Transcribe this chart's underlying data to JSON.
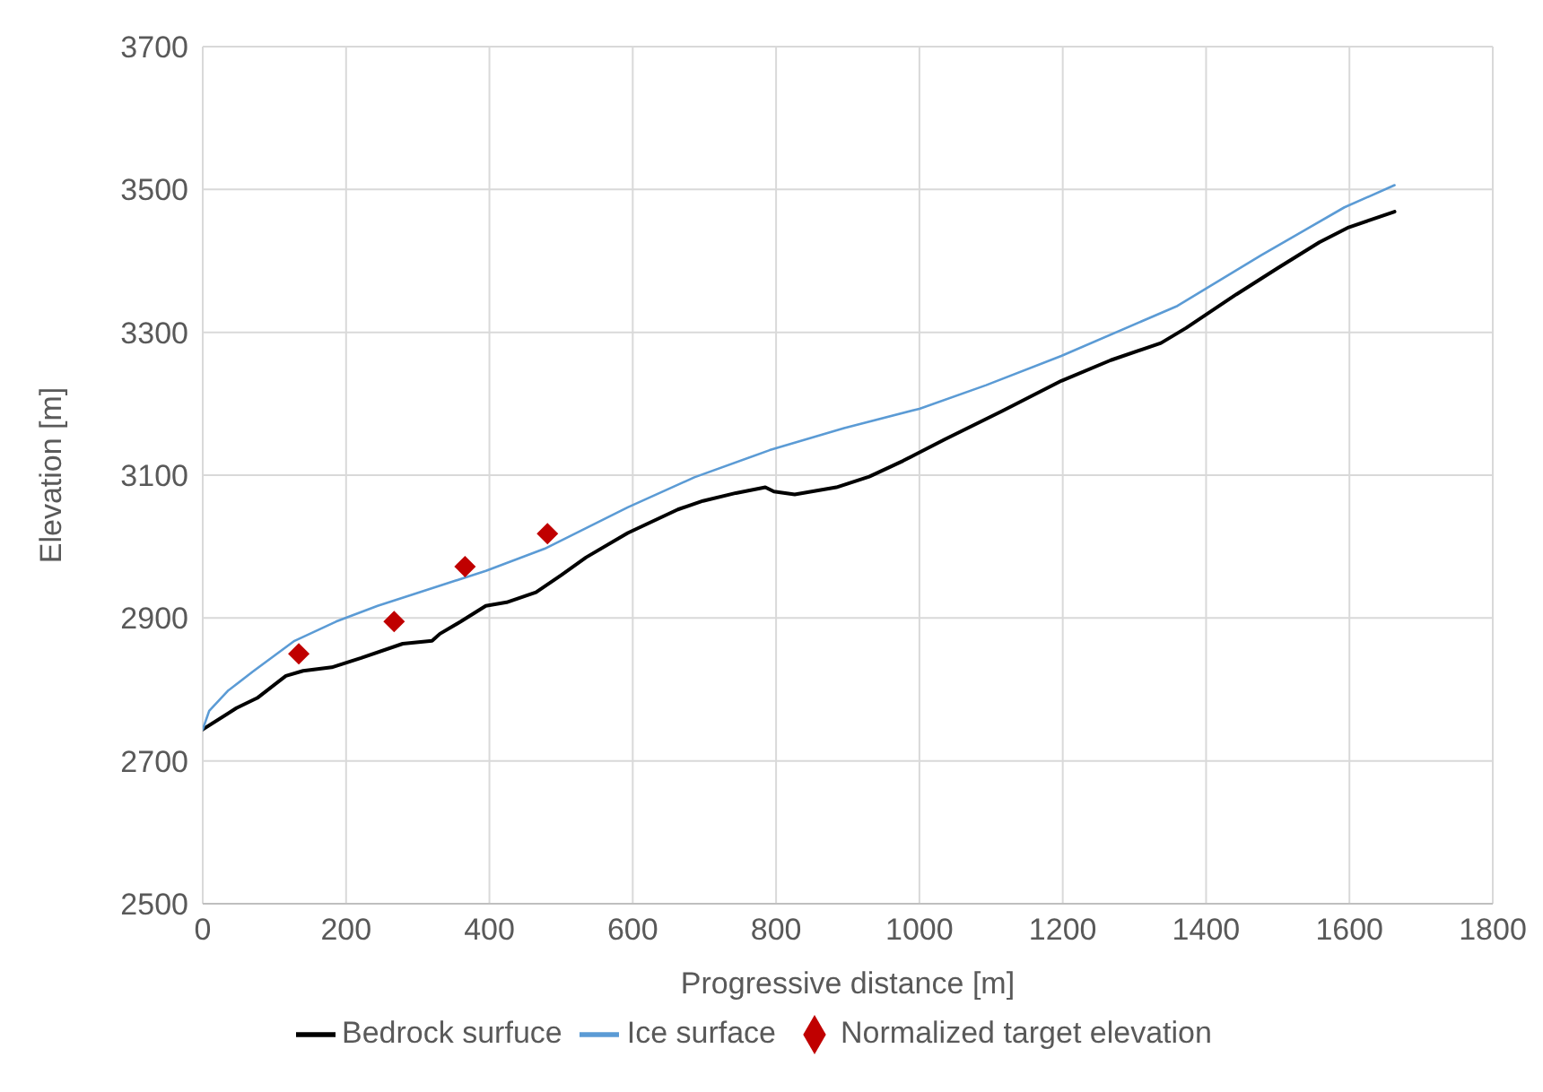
{
  "chart_data": {
    "type": "line",
    "xlabel": "Progressive distance [m]",
    "ylabel": "Elevation [m]",
    "xlim": [
      0,
      1800
    ],
    "xticks": [
      0,
      200,
      400,
      600,
      800,
      1000,
      1200,
      1400,
      1600,
      1800
    ],
    "ylim": [
      2500,
      3700
    ],
    "yticks": [
      2500,
      2700,
      2900,
      3100,
      3300,
      3500,
      3700
    ],
    "grid": true,
    "legend": "bottom",
    "series": [
      {
        "name": "Bedrock surfuce",
        "color": "#000000",
        "marker": "none",
        "x": [
          0,
          47,
          76,
          116,
          140,
          180,
          221,
          279,
          320,
          331,
          360,
          395,
          424,
          465,
          500,
          535,
          593,
          663,
          698,
          744,
          785,
          797,
          826,
          884,
          930,
          977,
          1035,
          1116,
          1198,
          1267,
          1337,
          1372,
          1442,
          1500,
          1558,
          1599,
          1628,
          1663
        ],
        "values": [
          2744,
          2774,
          2788,
          2819,
          2826,
          2831,
          2844,
          2864,
          2868,
          2878,
          2895,
          2917,
          2922,
          2936,
          2960,
          2985,
          3019,
          3052,
          3064,
          3075,
          3083,
          3077,
          3073,
          3083,
          3098,
          3120,
          3150,
          3190,
          3232,
          3261,
          3285,
          3306,
          3353,
          3390,
          3426,
          3447,
          3457,
          3469
        ]
      },
      {
        "name": "Ice surface",
        "color": "#5b9bd5",
        "marker": "none",
        "x": [
          0,
          9,
          35,
          70,
          128,
          186,
          244,
          302,
          395,
          477,
          593,
          686,
          791,
          895,
          1000,
          1093,
          1198,
          1360,
          1477,
          1593,
          1663
        ],
        "values": [
          2744,
          2770,
          2798,
          2825,
          2868,
          2895,
          2917,
          2936,
          2966,
          2997,
          3055,
          3097,
          3135,
          3166,
          3193,
          3226,
          3267,
          3337,
          3408,
          3475,
          3506
        ]
      },
      {
        "name": "Normalized target elevation",
        "type": "scatter",
        "color": "#c00000",
        "marker": "diamond",
        "x": [
          134,
          267,
          366,
          481
        ],
        "values": [
          2850,
          2895,
          2972,
          3018
        ]
      }
    ]
  }
}
